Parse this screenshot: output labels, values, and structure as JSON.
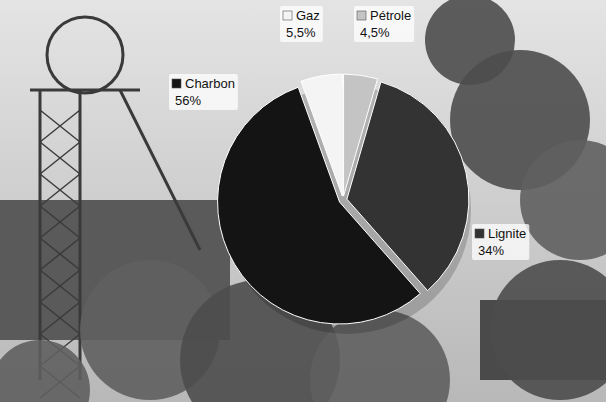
{
  "chart_data": {
    "type": "pie",
    "categories": [
      "Pétrole",
      "Lignite",
      "Charbon",
      "Gaz"
    ],
    "values": [
      4.5,
      34,
      56,
      5.5
    ],
    "value_labels": [
      "4,5%",
      "34%",
      "56%",
      "5,5%"
    ],
    "colors": [
      "#c4c4c4",
      "#333333",
      "#141414",
      "#f4f4f4"
    ],
    "data_labels": true
  }
}
